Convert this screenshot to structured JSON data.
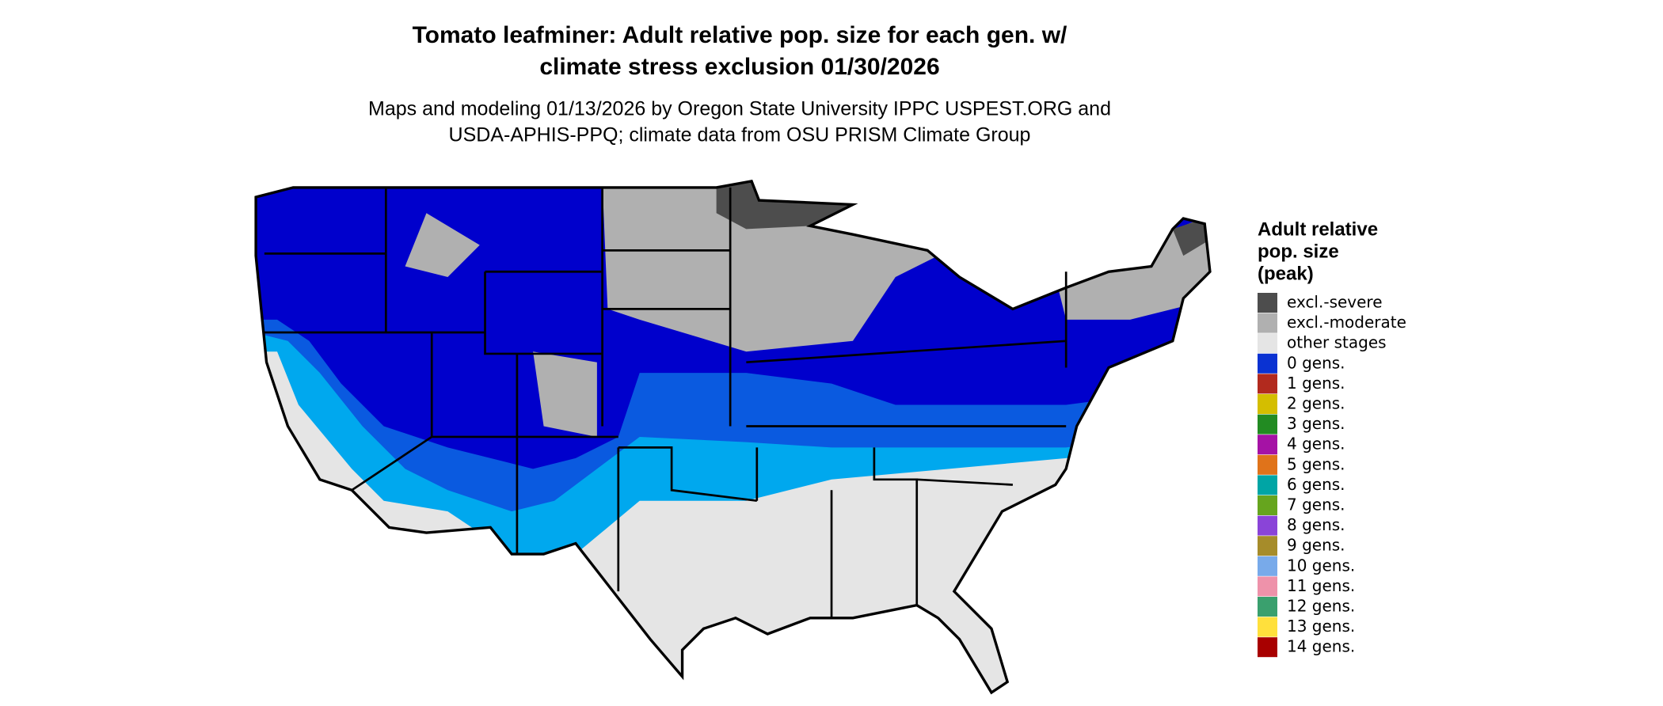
{
  "header": {
    "title": [
      "Tomato leafminer: Adult relative pop. size for each gen. w/",
      "climate stress exclusion 01/30/2026"
    ],
    "subtitle": [
      "Maps and modeling 01/13/2026 by Oregon State University IPPC USPEST.ORG and",
      "USDA-APHIS-PPQ; climate data from OSU PRISM Climate Group"
    ]
  },
  "legend": {
    "title": [
      "Adult relative",
      "pop. size",
      "(peak)"
    ],
    "items": [
      {
        "label": "excl.-severe",
        "color": "#4d4d4d"
      },
      {
        "label": "excl.-moderate",
        "color": "#b0b0b0"
      },
      {
        "label": "other stages",
        "color": "#e5e5e5"
      },
      {
        "label": "0 gens.",
        "color": "#0a32d2"
      },
      {
        "label": "1 gens.",
        "color": "#b22a1e"
      },
      {
        "label": "2 gens.",
        "color": "#d4be00"
      },
      {
        "label": "3 gens.",
        "color": "#228b22"
      },
      {
        "label": "4 gens.",
        "color": "#a512a5"
      },
      {
        "label": "5 gens.",
        "color": "#e0731a"
      },
      {
        "label": "6 gens.",
        "color": "#00a5a5"
      },
      {
        "label": "7 gens.",
        "color": "#66a51e"
      },
      {
        "label": "8 gens.",
        "color": "#8a44d8"
      },
      {
        "label": "9 gens.",
        "color": "#a68c2a"
      },
      {
        "label": "10 gens.",
        "color": "#78aaea"
      },
      {
        "label": "11 gens.",
        "color": "#ee92aa"
      },
      {
        "label": "12 gens.",
        "color": "#3aa06e"
      },
      {
        "label": "13 gens.",
        "color": "#ffe03c"
      },
      {
        "label": "14 gens.",
        "color": "#a80000"
      }
    ]
  }
}
